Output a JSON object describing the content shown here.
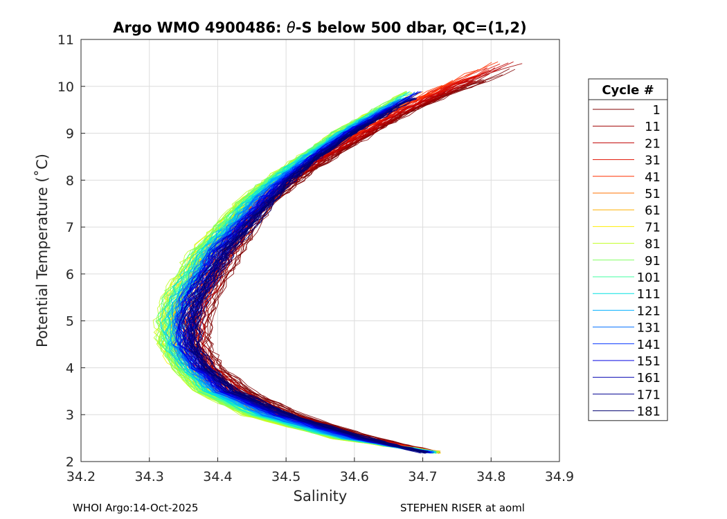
{
  "chart_data": {
    "type": "line",
    "title_prefix": "Argo WMO 4900486: ",
    "title_symbol": "θ",
    "title_suffix": "-S below 500 dbar,  QC=(1,2)",
    "xlabel": "Salinity",
    "ylabel": "Potential Temperature (˚C)",
    "xlim": [
      34.2,
      34.9
    ],
    "ylim": [
      2,
      11
    ],
    "xticks": [
      "34.2",
      "34.3",
      "34.4",
      "34.5",
      "34.6",
      "34.7",
      "34.8",
      "34.9"
    ],
    "yticks": [
      "2",
      "3",
      "4",
      "5",
      "6",
      "7",
      "8",
      "9",
      "10",
      "11"
    ],
    "grid": true,
    "legend": {
      "title": "Cycle #",
      "position": "right",
      "entries": [
        {
          "label": "1",
          "color": "#800000"
        },
        {
          "label": "11",
          "color": "#a00000"
        },
        {
          "label": "21",
          "color": "#c00000"
        },
        {
          "label": "31",
          "color": "#e01000"
        },
        {
          "label": "41",
          "color": "#ff3000"
        },
        {
          "label": "51",
          "color": "#ff7000"
        },
        {
          "label": "61",
          "color": "#ffb000"
        },
        {
          "label": "71",
          "color": "#ffee00"
        },
        {
          "label": "81",
          "color": "#c0ff20"
        },
        {
          "label": "91",
          "color": "#80ff60"
        },
        {
          "label": "101",
          "color": "#40ffa0"
        },
        {
          "label": "111",
          "color": "#00e0e0"
        },
        {
          "label": "121",
          "color": "#00b0ff"
        },
        {
          "label": "131",
          "color": "#0070ff"
        },
        {
          "label": "141",
          "color": "#0030ff"
        },
        {
          "label": "151",
          "color": "#0000e0"
        },
        {
          "label": "161",
          "color": "#0000b0"
        },
        {
          "label": "171",
          "color": "#000090"
        },
        {
          "label": "181",
          "color": "#000070"
        }
      ]
    },
    "profile_shape": {
      "temperature": [
        2.2,
        2.5,
        3.0,
        3.5,
        4.0,
        4.5,
        5.0,
        5.5,
        6.0,
        6.5,
        7.0,
        7.5,
        8.0,
        8.5,
        9.0,
        9.5,
        10.0,
        10.5
      ],
      "salinity_first": [
        34.72,
        34.63,
        34.52,
        34.45,
        34.4,
        34.38,
        34.38,
        34.39,
        34.41,
        34.43,
        34.45,
        34.48,
        34.52,
        34.57,
        34.63,
        34.69,
        34.77,
        34.86
      ],
      "salinity_middle": [
        34.72,
        34.57,
        34.44,
        34.37,
        34.34,
        34.32,
        34.32,
        34.33,
        34.35,
        34.37,
        34.4,
        34.43,
        34.47,
        34.52,
        34.57,
        34.63,
        null,
        null
      ],
      "salinity_last": [
        34.7,
        34.62,
        34.51,
        34.43,
        34.39,
        34.37,
        34.37,
        34.38,
        34.4,
        34.42,
        34.45,
        34.48,
        34.51,
        34.55,
        34.6,
        34.66,
        null,
        null
      ]
    }
  },
  "footer": {
    "left": "WHOI Argo:14-Oct-2025",
    "right": "STEPHEN RISER at aoml"
  }
}
